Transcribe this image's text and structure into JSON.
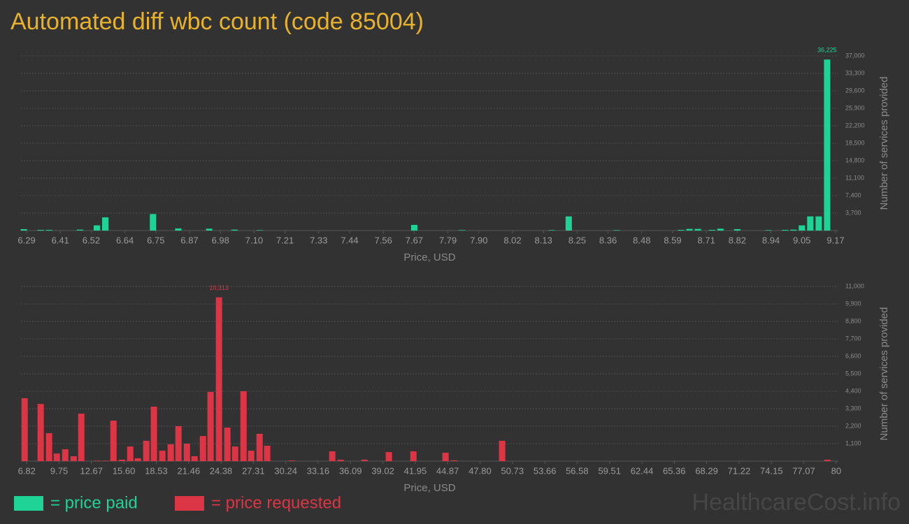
{
  "title": "Automated diff wbc count (code 85004)",
  "watermark": "HealthcareCost.info",
  "chart_data": [
    {
      "type": "bar",
      "x_label": "Price, USD",
      "y_label": "Number of services provided",
      "x": [
        6.28,
        6.34,
        6.37,
        6.48,
        6.54,
        6.57,
        6.74,
        6.83,
        6.94,
        7.03,
        7.12,
        7.67,
        7.84,
        8.16,
        8.22,
        8.39,
        8.62,
        8.65,
        8.68,
        8.73,
        8.76,
        8.82,
        8.93,
        8.99,
        9.02,
        9.05,
        9.08,
        9.11,
        9.14
      ],
      "series": [
        {
          "name": "= price paid",
          "color": "#1fd396",
          "values": [
            300,
            150,
            150,
            200,
            1100,
            2800,
            3500,
            450,
            400,
            200,
            100,
            1200,
            100,
            100,
            3000,
            100,
            150,
            350,
            350,
            150,
            400,
            300,
            100,
            150,
            200,
            1100,
            3000,
            3000,
            36225
          ],
          "value_labels": [
            null,
            null,
            null,
            null,
            null,
            null,
            null,
            null,
            null,
            null,
            null,
            null,
            null,
            null,
            null,
            null,
            null,
            null,
            null,
            null,
            null,
            null,
            null,
            null,
            null,
            null,
            null,
            null,
            "36,225"
          ]
        }
      ],
      "xlim": [
        6.27,
        9.18
      ],
      "xticks": [
        6.29,
        6.41,
        6.52,
        6.64,
        6.75,
        6.87,
        6.98,
        {
          "value": 7.1,
          "label": "7.10"
        },
        7.21,
        7.33,
        7.44,
        7.56,
        7.67,
        7.79,
        {
          "value": 7.9,
          "label": "7.90"
        },
        8.02,
        8.13,
        8.25,
        8.36,
        8.48,
        8.59,
        8.71,
        8.82,
        8.94,
        9.05,
        9.17
      ],
      "ylim": [
        0,
        37000
      ],
      "yticks": [
        {
          "value": 3700,
          "label": "3,700"
        },
        {
          "value": 7400,
          "label": "7,400"
        },
        {
          "value": 11100,
          "label": "11,100"
        },
        {
          "value": 14800,
          "label": "14,800"
        },
        {
          "value": 18500,
          "label": "18,500"
        },
        {
          "value": 22200,
          "label": "22,200"
        },
        {
          "value": 25900,
          "label": "25,900"
        },
        {
          "value": 29600,
          "label": "29,600"
        },
        {
          "value": 33300,
          "label": "33,300"
        },
        {
          "value": 37000,
          "label": "37,000"
        }
      ],
      "grid": true
    },
    {
      "type": "bar",
      "x_label": "Price, USD",
      "y_label": "Number of services provided",
      "x": [
        6.63,
        8.08,
        8.84,
        9.54,
        10.3,
        11.06,
        11.75,
        13.2,
        13.96,
        14.66,
        15.42,
        16.18,
        16.87,
        17.63,
        18.32,
        19.08,
        19.84,
        20.54,
        21.3,
        21.99,
        22.75,
        23.44,
        24.2,
        24.96,
        25.66,
        26.42,
        27.11,
        27.87,
        28.56,
        30.78,
        34.44,
        35.2,
        37.35,
        39.56,
        41.78,
        44.68,
        45.44,
        49.8,
        79.2
      ],
      "series": [
        {
          "name": "= price requested",
          "color": "#dc3545",
          "values": [
            3960,
            3600,
            1760,
            480,
            750,
            310,
            2990,
            30,
            30,
            2550,
            90,
            920,
            180,
            1280,
            3430,
            660,
            1060,
            2200,
            1100,
            310,
            1580,
            4360,
            10313,
            2110,
            920,
            4400,
            660,
            1720,
            970,
            40,
            620,
            90,
            90,
            570,
            620,
            530,
            50,
            1280,
            90
          ],
          "value_labels": [
            null,
            null,
            null,
            null,
            null,
            null,
            null,
            null,
            null,
            null,
            null,
            null,
            null,
            null,
            null,
            null,
            null,
            null,
            null,
            null,
            null,
            null,
            "10,313",
            null,
            null,
            null,
            null,
            null,
            null,
            null,
            null,
            null,
            null,
            null,
            null,
            null,
            null,
            null,
            null
          ]
        }
      ],
      "xlim": [
        6.3,
        80.2
      ],
      "xticks": [
        6.82,
        9.75,
        12.67,
        {
          "value": 15.6,
          "label": "15.60"
        },
        18.53,
        21.46,
        24.38,
        27.31,
        30.24,
        33.16,
        36.09,
        39.02,
        41.95,
        44.87,
        {
          "value": 47.8,
          "label": "47.80"
        },
        50.73,
        53.66,
        56.58,
        59.51,
        62.44,
        65.36,
        68.29,
        71.22,
        74.15,
        77.07,
        80
      ],
      "ylim": [
        0,
        11000
      ],
      "yticks": [
        {
          "value": 1100,
          "label": "1,100"
        },
        {
          "value": 2200,
          "label": "2,200"
        },
        {
          "value": 3300,
          "label": "3,300"
        },
        {
          "value": 4400,
          "label": "4,400"
        },
        {
          "value": 5500,
          "label": "5,500"
        },
        {
          "value": 6600,
          "label": "6,600"
        },
        {
          "value": 7700,
          "label": "7,700"
        },
        {
          "value": 8800,
          "label": "8,800"
        },
        {
          "value": 9900,
          "label": "9,900"
        },
        {
          "value": 11000,
          "label": "11,000"
        }
      ],
      "grid": true
    }
  ]
}
